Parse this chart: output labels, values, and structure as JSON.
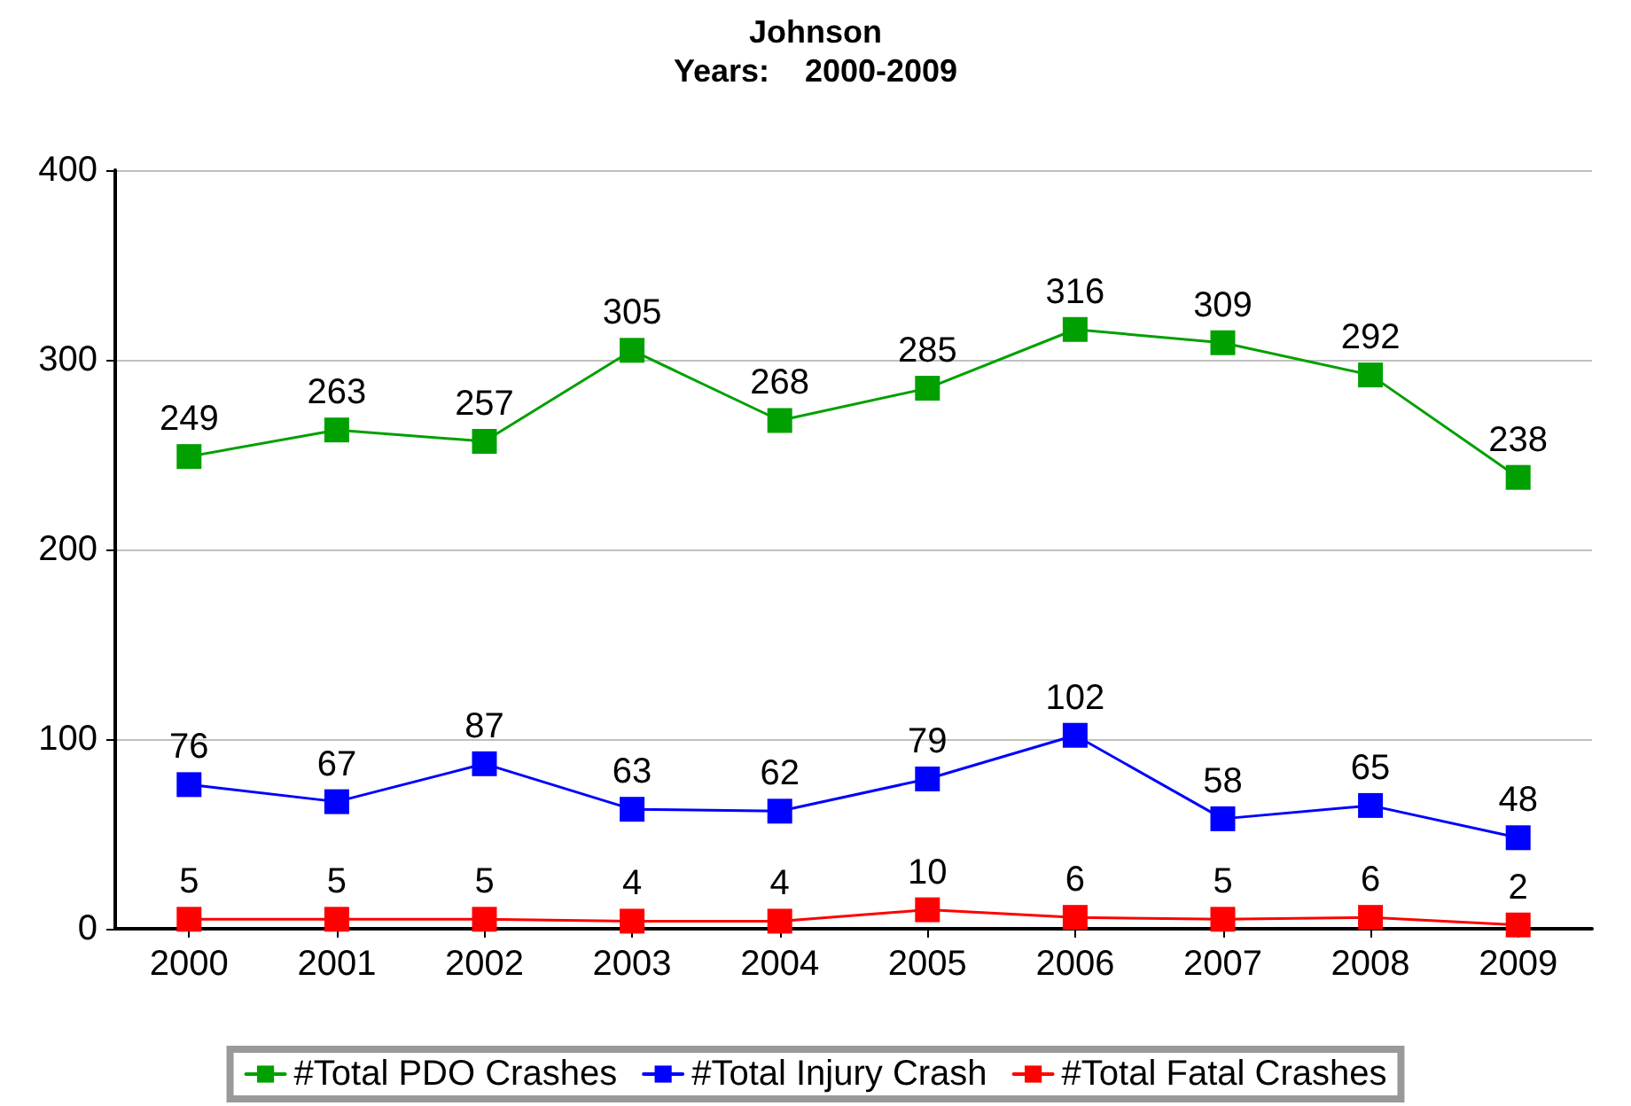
{
  "chart_data": {
    "type": "line",
    "title": "Johnson",
    "subtitle": "Years:    2000-2009",
    "categories": [
      "2000",
      "2001",
      "2002",
      "2003",
      "2004",
      "2005",
      "2006",
      "2007",
      "2008",
      "2009"
    ],
    "series": [
      {
        "name": "#Total PDO Crashes",
        "color": "#00a000",
        "values": [
          249,
          263,
          257,
          305,
          268,
          285,
          316,
          309,
          292,
          238
        ]
      },
      {
        "name": "#Total Injury Crash",
        "color": "#0000ff",
        "values": [
          76,
          67,
          87,
          63,
          62,
          79,
          102,
          58,
          65,
          48
        ]
      },
      {
        "name": "#Total Fatal Crashes",
        "color": "#ff0000",
        "values": [
          5,
          5,
          5,
          4,
          4,
          10,
          6,
          5,
          6,
          2
        ]
      }
    ],
    "ylim": [
      0,
      400
    ],
    "yticks": [
      0,
      100,
      200,
      300,
      400
    ],
    "grid": "y",
    "legend": "bottom",
    "marker": "square",
    "line_style": "solid",
    "data_labels": true
  }
}
